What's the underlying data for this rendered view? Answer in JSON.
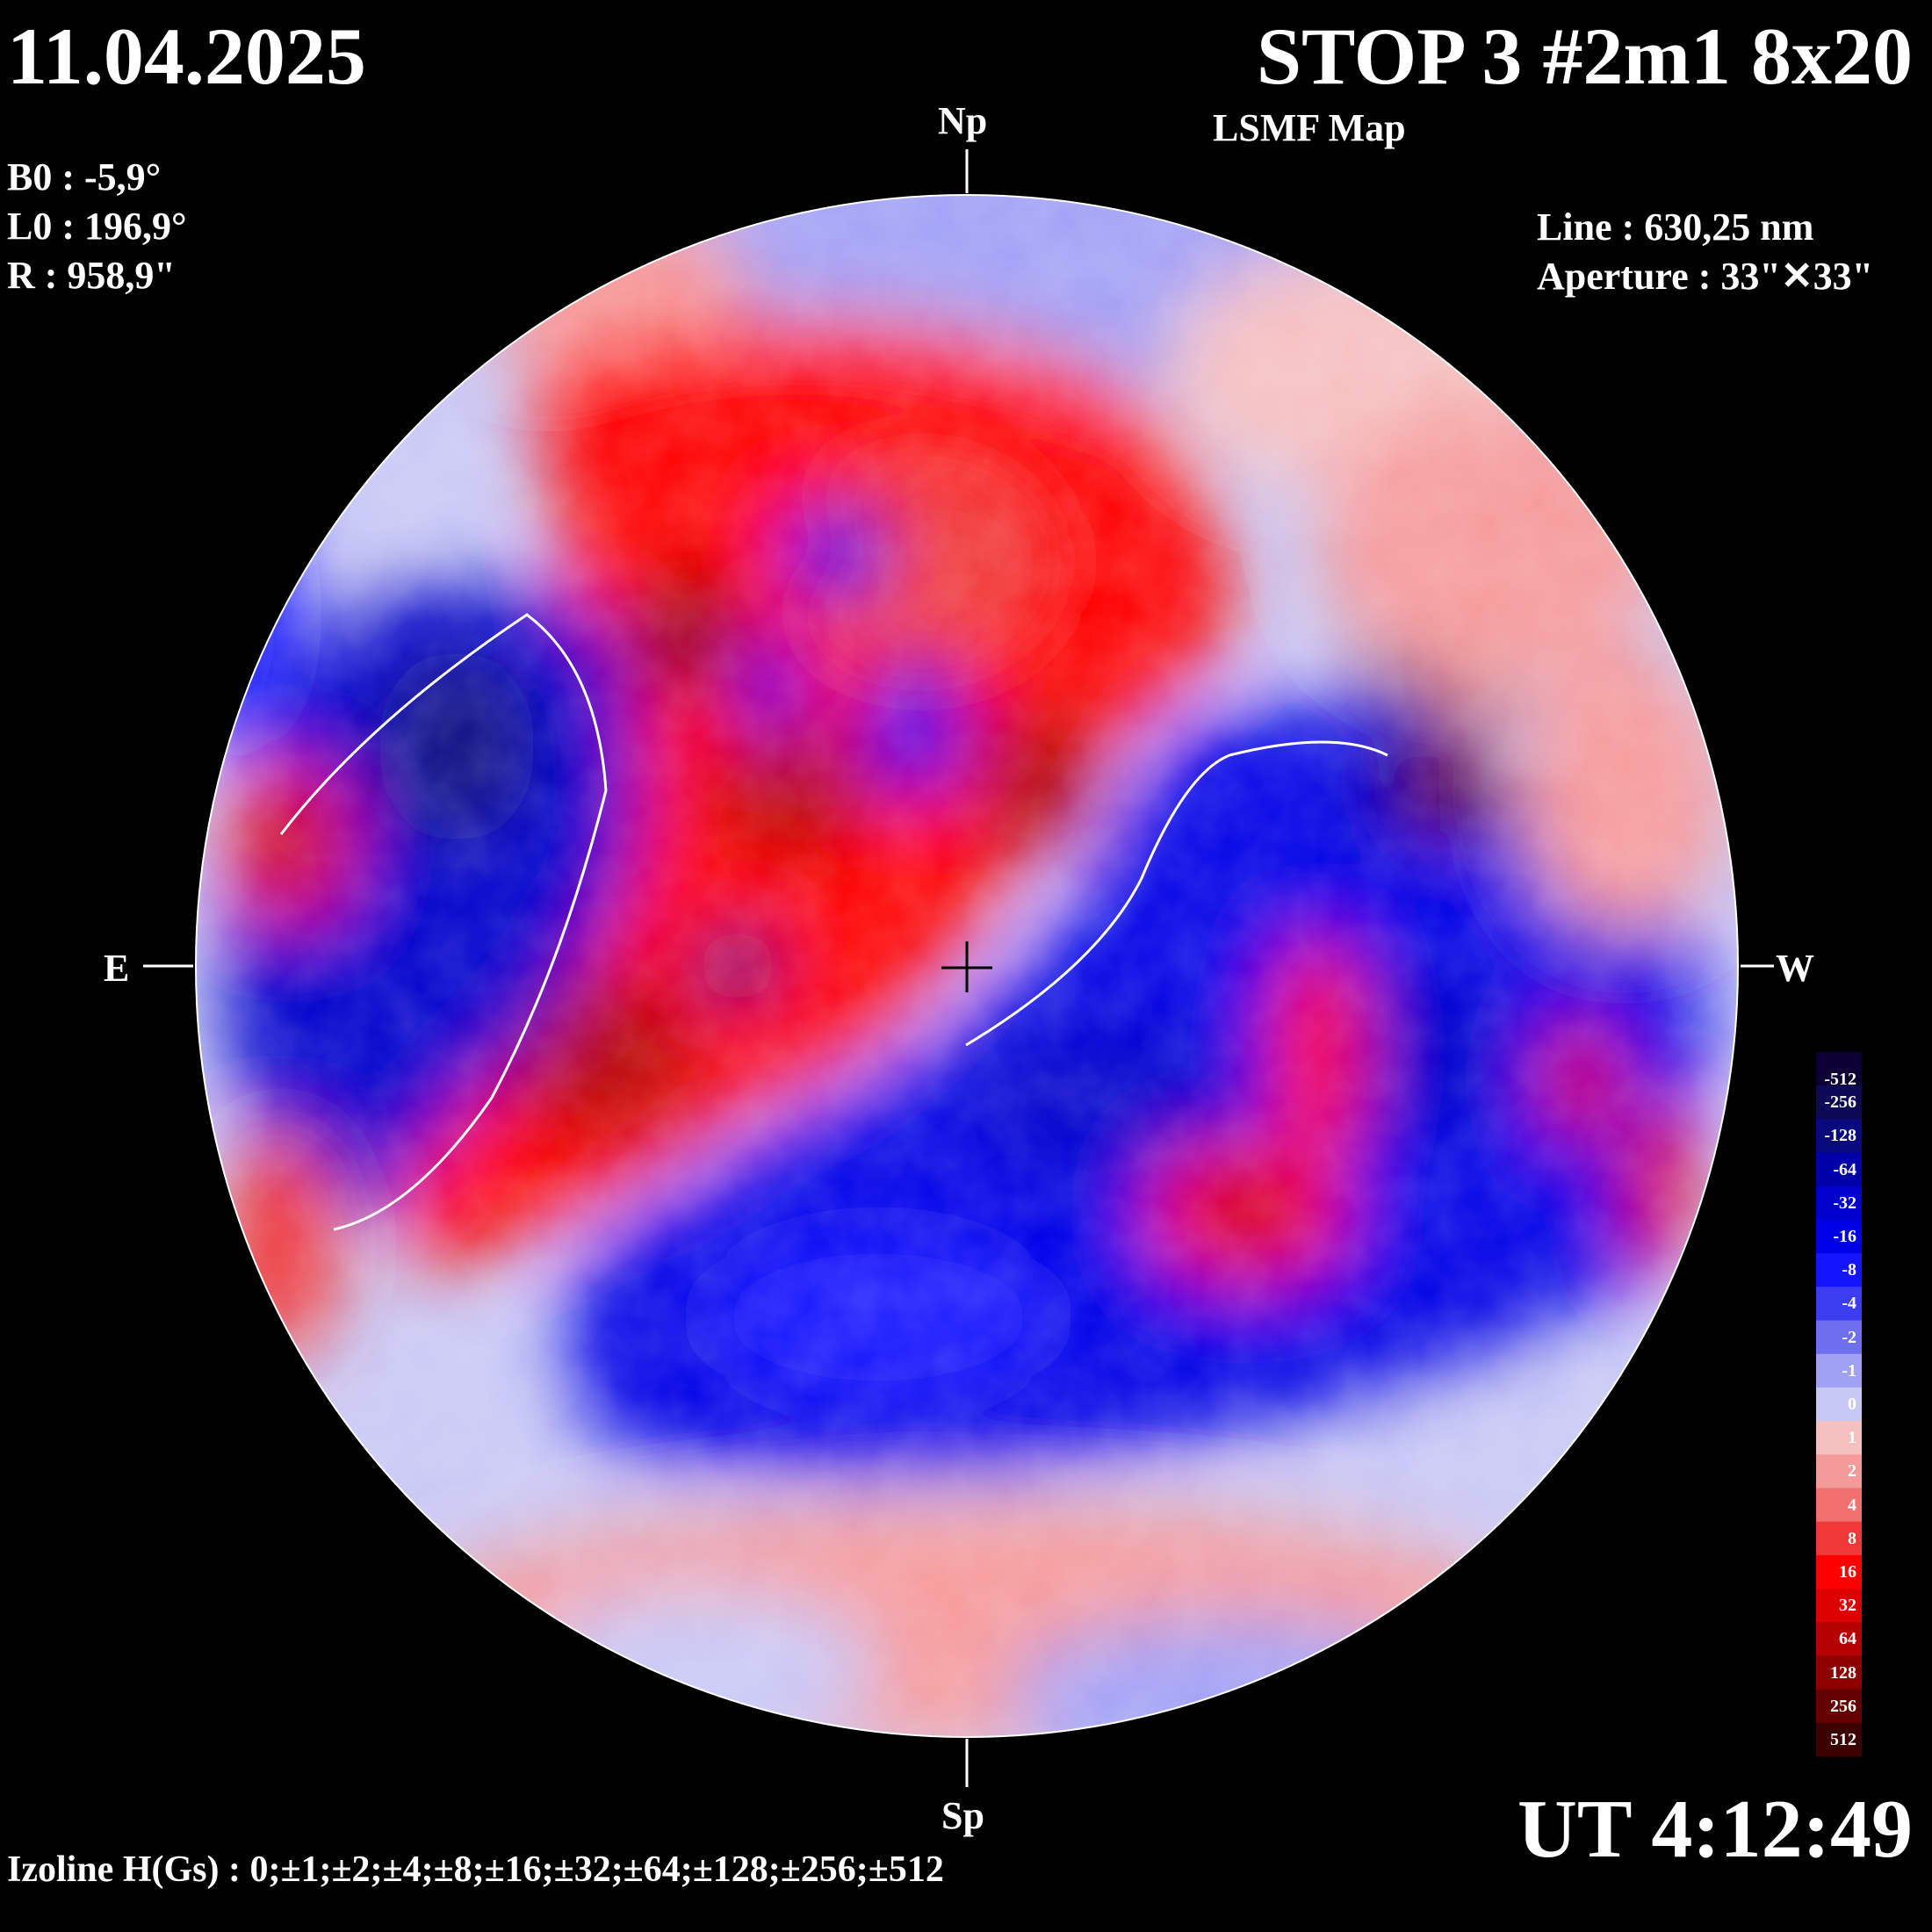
{
  "header": {
    "date": "11.04.2025",
    "title": "STOP 3 #2m1 8x20",
    "subtitle": "LSMF  Map",
    "ut": "UT 4:12:49"
  },
  "params": {
    "b0": "B0 : -5,9°",
    "l0": "L0 : 196,9°",
    "r": "R  : 958,9\"",
    "line": "Line :  630,25 nm",
    "aperture": "Aperture : 33\"✕33\""
  },
  "directions": {
    "north": "Np",
    "south": "Sp",
    "east": "E",
    "west": "W"
  },
  "footer": {
    "izoline": "Izoline H(Gs) : 0;±1;±2;±4;±8;±16;±32;±64;±128;±256;±512"
  },
  "colorbar": {
    "labels": [
      "-512",
      "-256",
      "-128",
      "-64",
      "-32",
      "-16",
      "-8",
      "-4",
      "-2",
      "-1",
      "0",
      "1",
      "2",
      "4",
      "8",
      "16",
      "32",
      "64",
      "128",
      "256",
      "512"
    ],
    "colors": [
      "#0a0033",
      "#0d0a55",
      "#0a0a80",
      "#0000a8",
      "#0000cc",
      "#0000e6",
      "#1414ff",
      "#3c3cf0",
      "#6e6ef0",
      "#a0a0f5",
      "#c8c8f5",
      "#f5c0c0",
      "#f59a9a",
      "#f07070",
      "#f03838",
      "#ff0000",
      "#dc0000",
      "#b40000",
      "#8c0000",
      "#640000",
      "#3c0000"
    ]
  },
  "map_legend": {
    "positive_color": "#ff0000",
    "negative_color": "#0000e6",
    "background_color": "#000000",
    "contour_color": "#ffffff"
  }
}
